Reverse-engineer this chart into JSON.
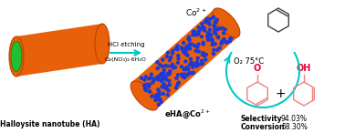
{
  "bg_color": "#ffffff",
  "halloysite_color": "#e8600a",
  "halloysite_inner_color": "#22c030",
  "eha_color": "#e8600a",
  "dot_color": "#1a3adb",
  "arrow_color": "#00c8c8",
  "text_color": "#000000",
  "red_color": "#e80030",
  "product_ring_color": "#f08080",
  "label_ha": "Halloysite nanotube (HA)",
  "label_eha": "eHA@Co",
  "label_co": "Co",
  "arrow_text1": "HCl etching",
  "arrow_text2": "Co(NO₃)₂·6H₂O",
  "o2_text": "O₂ 75°C",
  "selectivity_label": "Selectivity",
  "selectivity_value": "94.03%",
  "conversion_label": "Conversion",
  "conversion_value": "58.30%",
  "figsize": [
    3.78,
    1.46
  ],
  "dpi": 100
}
